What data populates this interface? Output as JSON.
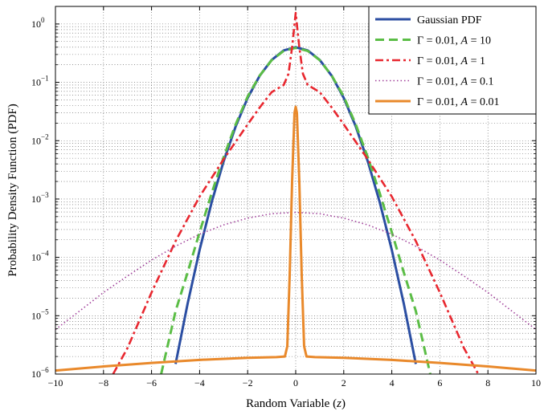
{
  "chart_data": {
    "type": "line",
    "title": "",
    "xlabel": "Random Variable (z)",
    "xlabel_parts": {
      "prefix": "Random Variable (",
      "var": "z",
      "suffix": ")"
    },
    "ylabel": "Probability Density Function (PDF)",
    "x_scale": "linear",
    "y_scale": "log",
    "xlim": [
      -10,
      10
    ],
    "ylim": [
      1e-06,
      2
    ],
    "x_ticks": [
      -10,
      -8,
      -6,
      -4,
      -2,
      0,
      2,
      4,
      6,
      8,
      10
    ],
    "x_tick_labels": [
      "−10",
      "−8",
      "−6",
      "−4",
      "−2",
      "0",
      "2",
      "4",
      "6",
      "8",
      "10"
    ],
    "y_ticks": [
      1e-06,
      1e-05,
      0.0001,
      0.001,
      0.01,
      0.1,
      1
    ],
    "y_tick_labels": [
      {
        "base": "10",
        "exp": "−6"
      },
      {
        "base": "10",
        "exp": "−5"
      },
      {
        "base": "10",
        "exp": "−4"
      },
      {
        "base": "10",
        "exp": "−3"
      },
      {
        "base": "10",
        "exp": "−2"
      },
      {
        "base": "10",
        "exp": "−1"
      },
      {
        "base": "10",
        "exp": "0"
      }
    ],
    "grid": true,
    "legend_position": "top-right",
    "series": [
      {
        "name": "Gaussian PDF",
        "legend": {
          "pre": "Gaussian PDF",
          "var": "",
          "post": ""
        },
        "color": "#2b4ea2",
        "dash": "solid",
        "width": 3.0,
        "x": [
          -5.0,
          -4.5,
          -4.0,
          -3.5,
          -3.0,
          -2.5,
          -2.0,
          -1.5,
          -1.0,
          -0.5,
          0.0,
          0.5,
          1.0,
          1.5,
          2.0,
          2.5,
          3.0,
          3.5,
          4.0,
          4.5,
          5.0
        ],
        "y": [
          1.49e-06,
          1.6e-05,
          0.000134,
          0.000873,
          0.00443,
          0.0175,
          0.054,
          0.1295,
          0.242,
          0.352,
          0.399,
          0.352,
          0.242,
          0.1295,
          0.054,
          0.0175,
          0.00443,
          0.000873,
          0.000134,
          1.6e-05,
          1.49e-06
        ]
      },
      {
        "name": "Γ = 0.01, A = 10",
        "legend": {
          "pre": "Γ = 0.01, ",
          "var": "A",
          "post": " = 10"
        },
        "color": "#5bbd46",
        "dash": "11,6",
        "width": 3.0,
        "x": [
          -5.6,
          -5.0,
          -4.5,
          -4.0,
          -3.5,
          -3.0,
          -2.5,
          -2.0,
          -1.5,
          -1.0,
          -0.5,
          0.0,
          0.5,
          1.0,
          1.5,
          2.0,
          2.5,
          3.0,
          3.5,
          4.0,
          4.5,
          5.0,
          5.6
        ],
        "y": [
          1e-06,
          1.2e-05,
          5.5e-05,
          0.00027,
          0.00125,
          0.0052,
          0.019,
          0.057,
          0.13,
          0.24,
          0.345,
          0.39,
          0.345,
          0.24,
          0.13,
          0.057,
          0.019,
          0.0052,
          0.00125,
          0.00027,
          5.5e-05,
          1.2e-05,
          1e-06
        ]
      },
      {
        "name": "Γ = 0.01, A = 1",
        "legend": {
          "pre": "Γ = 0.01, ",
          "var": "A",
          "post": " = 1"
        },
        "color": "#e8272f",
        "dash": "10,4,3,4",
        "width": 2.6,
        "x": [
          -7.6,
          -7.0,
          -6.0,
          -5.0,
          -4.0,
          -3.0,
          -2.0,
          -1.5,
          -1.0,
          -0.5,
          -0.3,
          -0.15,
          0.0,
          0.15,
          0.3,
          0.5,
          1.0,
          1.5,
          2.0,
          3.0,
          4.0,
          5.0,
          6.0,
          7.0,
          7.6
        ],
        "y": [
          1e-06,
          2.8e-06,
          2.5e-05,
          0.00019,
          0.0011,
          0.0048,
          0.019,
          0.037,
          0.068,
          0.09,
          0.14,
          0.4,
          1.55,
          0.4,
          0.14,
          0.09,
          0.068,
          0.037,
          0.019,
          0.0048,
          0.0011,
          0.00019,
          2.5e-05,
          2.8e-06,
          1e-06
        ]
      },
      {
        "name": "Γ = 0.01, A = 0.1",
        "legend": {
          "pre": "Γ = 0.01, ",
          "var": "A",
          "post": " = 0.1"
        },
        "color": "#a0409a",
        "dash": "1.5,3",
        "width": 1.6,
        "x": [
          -10.0,
          -9.0,
          -8.0,
          -7.0,
          -6.0,
          -5.0,
          -4.0,
          -3.0,
          -2.0,
          -1.0,
          0.0,
          1.0,
          2.0,
          3.0,
          4.0,
          5.0,
          6.0,
          7.0,
          8.0,
          9.0,
          10.0
        ],
        "y": [
          5.8e-06,
          1.2e-05,
          2.5e-05,
          4.8e-05,
          9e-05,
          0.000155,
          0.00025,
          0.00036,
          0.00047,
          0.00056,
          0.00059,
          0.00056,
          0.00047,
          0.00036,
          0.00025,
          0.000155,
          9e-05,
          4.8e-05,
          2.5e-05,
          1.2e-05,
          5.8e-06
        ]
      },
      {
        "name": "Γ = 0.01, A = 0.01",
        "legend": {
          "pre": "Γ = 0.01, ",
          "var": "A",
          "post": " = 0.01"
        },
        "color": "#e9892b",
        "dash": "solid",
        "width": 3.0,
        "x": [
          -10.0,
          -8.0,
          -6.0,
          -4.0,
          -2.0,
          -0.8,
          -0.45,
          -0.35,
          -0.25,
          -0.15,
          -0.05,
          0.0,
          0.05,
          0.15,
          0.25,
          0.35,
          0.45,
          0.8,
          2.0,
          4.0,
          6.0,
          8.0,
          10.0
        ],
        "y": [
          1.15e-06,
          1.35e-06,
          1.55e-06,
          1.75e-06,
          1.9e-06,
          1.95e-06,
          2e-06,
          3e-06,
          5e-05,
          0.002,
          0.03,
          0.038,
          0.03,
          0.002,
          5e-05,
          3e-06,
          2e-06,
          1.95e-06,
          1.9e-06,
          1.75e-06,
          1.55e-06,
          1.35e-06,
          1.15e-06
        ]
      }
    ]
  }
}
